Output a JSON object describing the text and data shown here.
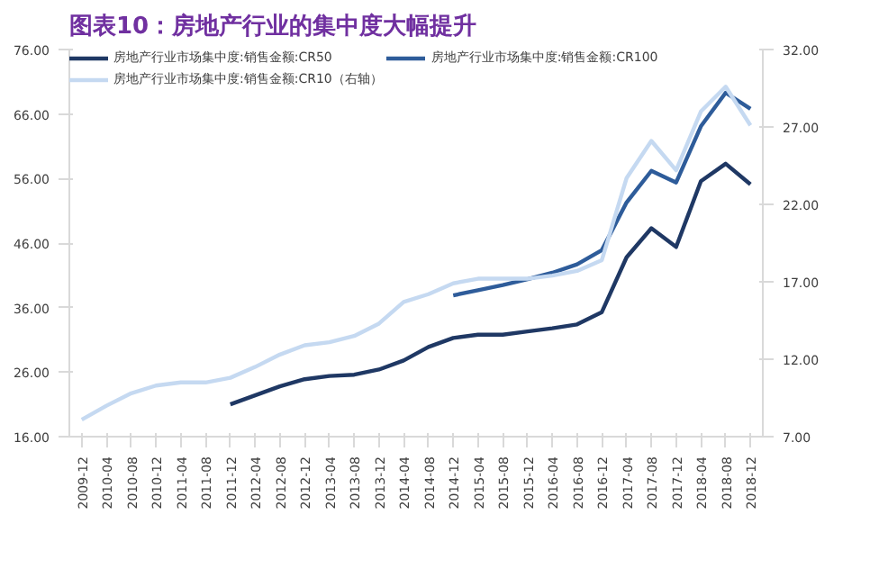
{
  "chart_data": {
    "type": "line",
    "title": "图表10：房地产行业的集中度大幅提升",
    "categories": [
      "2009-12",
      "2010-04",
      "2010-08",
      "2010-12",
      "2011-04",
      "2011-08",
      "2011-12",
      "2012-04",
      "2012-08",
      "2012-12",
      "2013-04",
      "2013-08",
      "2013-12",
      "2014-04",
      "2014-08",
      "2014-12",
      "2015-04",
      "2015-08",
      "2015-12",
      "2016-04",
      "2016-08",
      "2016-12",
      "2017-04",
      "2017-08",
      "2017-12",
      "2018-04",
      "2018-08",
      "2018-12"
    ],
    "series": [
      {
        "name": "房地产行业市场集中度:销售金额:CR50",
        "color": "#1f3864",
        "values": [
          null,
          null,
          null,
          null,
          null,
          null,
          21.0,
          22.4,
          23.8,
          24.9,
          25.4,
          25.6,
          26.4,
          27.8,
          29.9,
          31.3,
          31.8,
          31.8,
          32.3,
          32.8,
          33.4,
          35.3,
          43.8,
          48.3,
          45.4,
          55.6,
          58.3,
          55.1
        ]
      },
      {
        "name": "房地产行业市场集中度:销售金额:CR100",
        "color": "#2e5c9a",
        "values": [
          null,
          null,
          null,
          null,
          null,
          null,
          null,
          null,
          null,
          null,
          null,
          null,
          null,
          null,
          null,
          37.9,
          38.7,
          39.5,
          40.4,
          41.4,
          42.7,
          44.9,
          52.3,
          57.2,
          55.4,
          64.1,
          69.3,
          66.8
        ]
      },
      {
        "name": "房地产行业市场集中度:销售金额:CR10（右轴）",
        "color": "#c5d9f1",
        "axis": "y2",
        "values": [
          8.1,
          9.0,
          9.8,
          10.3,
          10.5,
          10.5,
          10.8,
          11.5,
          12.3,
          12.9,
          13.1,
          13.5,
          14.3,
          15.7,
          16.2,
          16.9,
          17.2,
          17.2,
          17.2,
          17.4,
          17.7,
          18.4,
          23.7,
          26.1,
          24.2,
          28.0,
          29.6,
          27.1
        ]
      }
    ],
    "ylim": [
      16,
      76
    ],
    "yticks": [
      {
        "value": 16,
        "label": "16.00"
      },
      {
        "value": 26,
        "label": "26.00"
      },
      {
        "value": 36,
        "label": "36.00"
      },
      {
        "value": 46,
        "label": "46.00"
      },
      {
        "value": 56,
        "label": "56.00"
      },
      {
        "value": 66,
        "label": "66.00"
      },
      {
        "value": 76,
        "label": "76.00"
      }
    ],
    "y2lim": [
      7,
      32
    ],
    "y2ticks": [
      {
        "value": 7,
        "label": "7.00"
      },
      {
        "value": 12,
        "label": "12.00"
      },
      {
        "value": 17,
        "label": "17.00"
      },
      {
        "value": 22,
        "label": "22.00"
      },
      {
        "value": 27,
        "label": "27.00"
      },
      {
        "value": 32,
        "label": "32.00"
      }
    ],
    "grid": false,
    "legend": "top"
  }
}
